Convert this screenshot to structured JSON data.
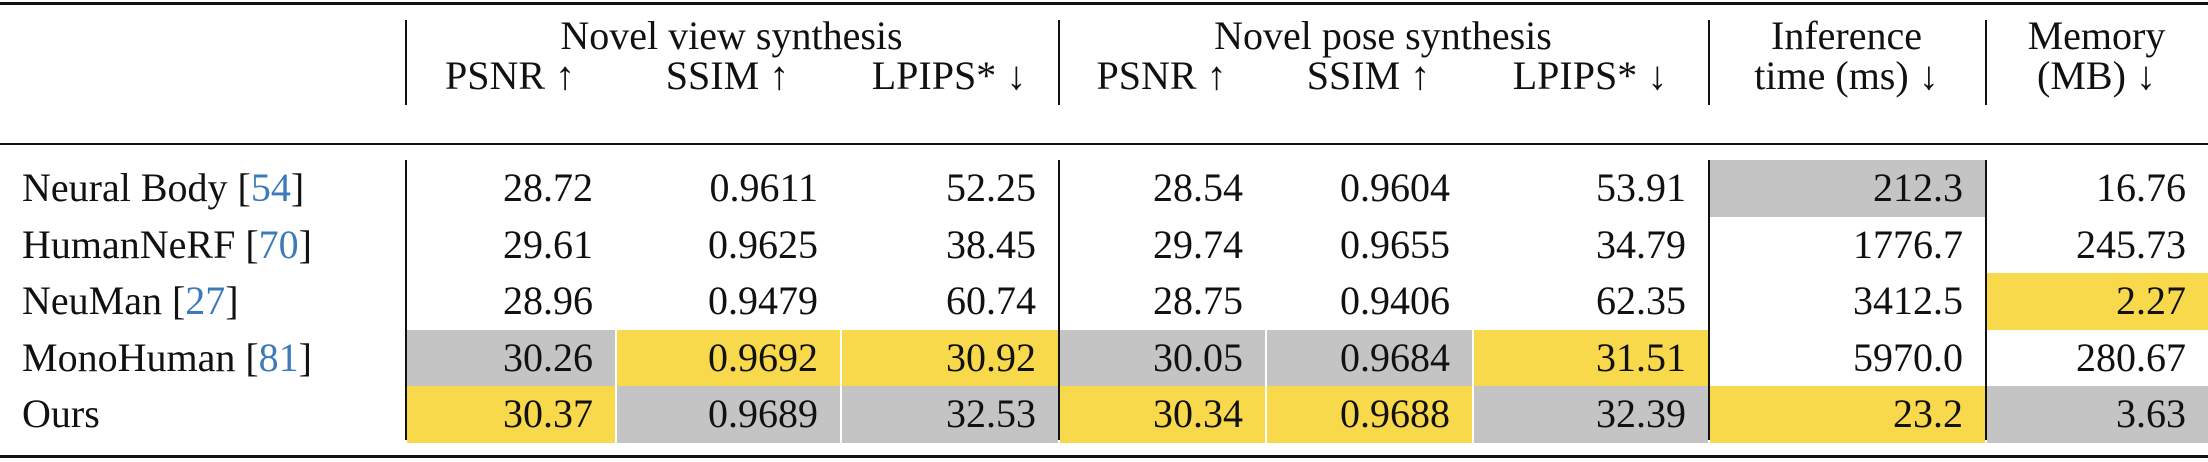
{
  "table": {
    "groups": [
      "Novel view synthesis",
      "Novel pose synthesis"
    ],
    "single_headers": [
      [
        "Inference",
        "time (ms) ↓"
      ],
      [
        "Memory",
        "(MB) ↓"
      ]
    ],
    "metrics": [
      "PSNR ↑",
      "SSIM ↑",
      "LPIPS* ↓",
      "PSNR ↑",
      "SSIM ↑",
      "LPIPS* ↓"
    ],
    "rows": [
      {
        "label": [
          "Neural Body [",
          "54",
          "]"
        ],
        "cells": [
          {
            "text": "28.72"
          },
          {
            "text": "0.9611"
          },
          {
            "text": "52.25"
          },
          {
            "text": "28.54"
          },
          {
            "text": "0.9604"
          },
          {
            "text": "53.91"
          },
          {
            "text": "212.3",
            "fill": "#c4c4c4"
          },
          {
            "text": "16.76"
          }
        ]
      },
      {
        "label": [
          "HumanNeRF [",
          "70",
          "]"
        ],
        "cells": [
          {
            "text": "29.61"
          },
          {
            "text": "0.9625"
          },
          {
            "text": "38.45"
          },
          {
            "text": "29.74"
          },
          {
            "text": "0.9655"
          },
          {
            "text": "34.79"
          },
          {
            "text": "1776.7"
          },
          {
            "text": "245.73"
          }
        ]
      },
      {
        "label": [
          "NeuMan [",
          "27",
          "]"
        ],
        "cells": [
          {
            "text": "28.96"
          },
          {
            "text": "0.9479"
          },
          {
            "text": "60.74"
          },
          {
            "text": "28.75"
          },
          {
            "text": "0.9406"
          },
          {
            "text": "62.35"
          },
          {
            "text": "3412.5"
          },
          {
            "text": "2.27",
            "fill": "#f9d94c"
          }
        ]
      },
      {
        "label": [
          "MonoHuman [",
          "81",
          "]"
        ],
        "cells": [
          {
            "text": "30.26",
            "fill": "#c4c4c4"
          },
          {
            "text": "0.9692",
            "fill": "#f9d94c"
          },
          {
            "text": "30.92",
            "fill": "#f9d94c"
          },
          {
            "text": "30.05",
            "fill": "#c4c4c4"
          },
          {
            "text": "0.9684",
            "fill": "#c4c4c4"
          },
          {
            "text": "31.51",
            "fill": "#f9d94c"
          },
          {
            "text": "5970.0"
          },
          {
            "text": "280.67"
          }
        ]
      },
      {
        "label": [
          "Ours"
        ],
        "cells": [
          {
            "text": "30.37",
            "fill": "#f9d94c"
          },
          {
            "text": "0.9689",
            "fill": "#c4c4c4"
          },
          {
            "text": "32.53",
            "fill": "#c4c4c4"
          },
          {
            "text": "30.34",
            "fill": "#f9d94c"
          },
          {
            "text": "0.9688",
            "fill": "#f9d94c"
          },
          {
            "text": "32.39",
            "fill": "#c4c4c4"
          },
          {
            "text": "23.2",
            "fill": "#f9d94c"
          },
          {
            "text": "3.63",
            "fill": "#c4c4c4"
          }
        ]
      }
    ]
  }
}
